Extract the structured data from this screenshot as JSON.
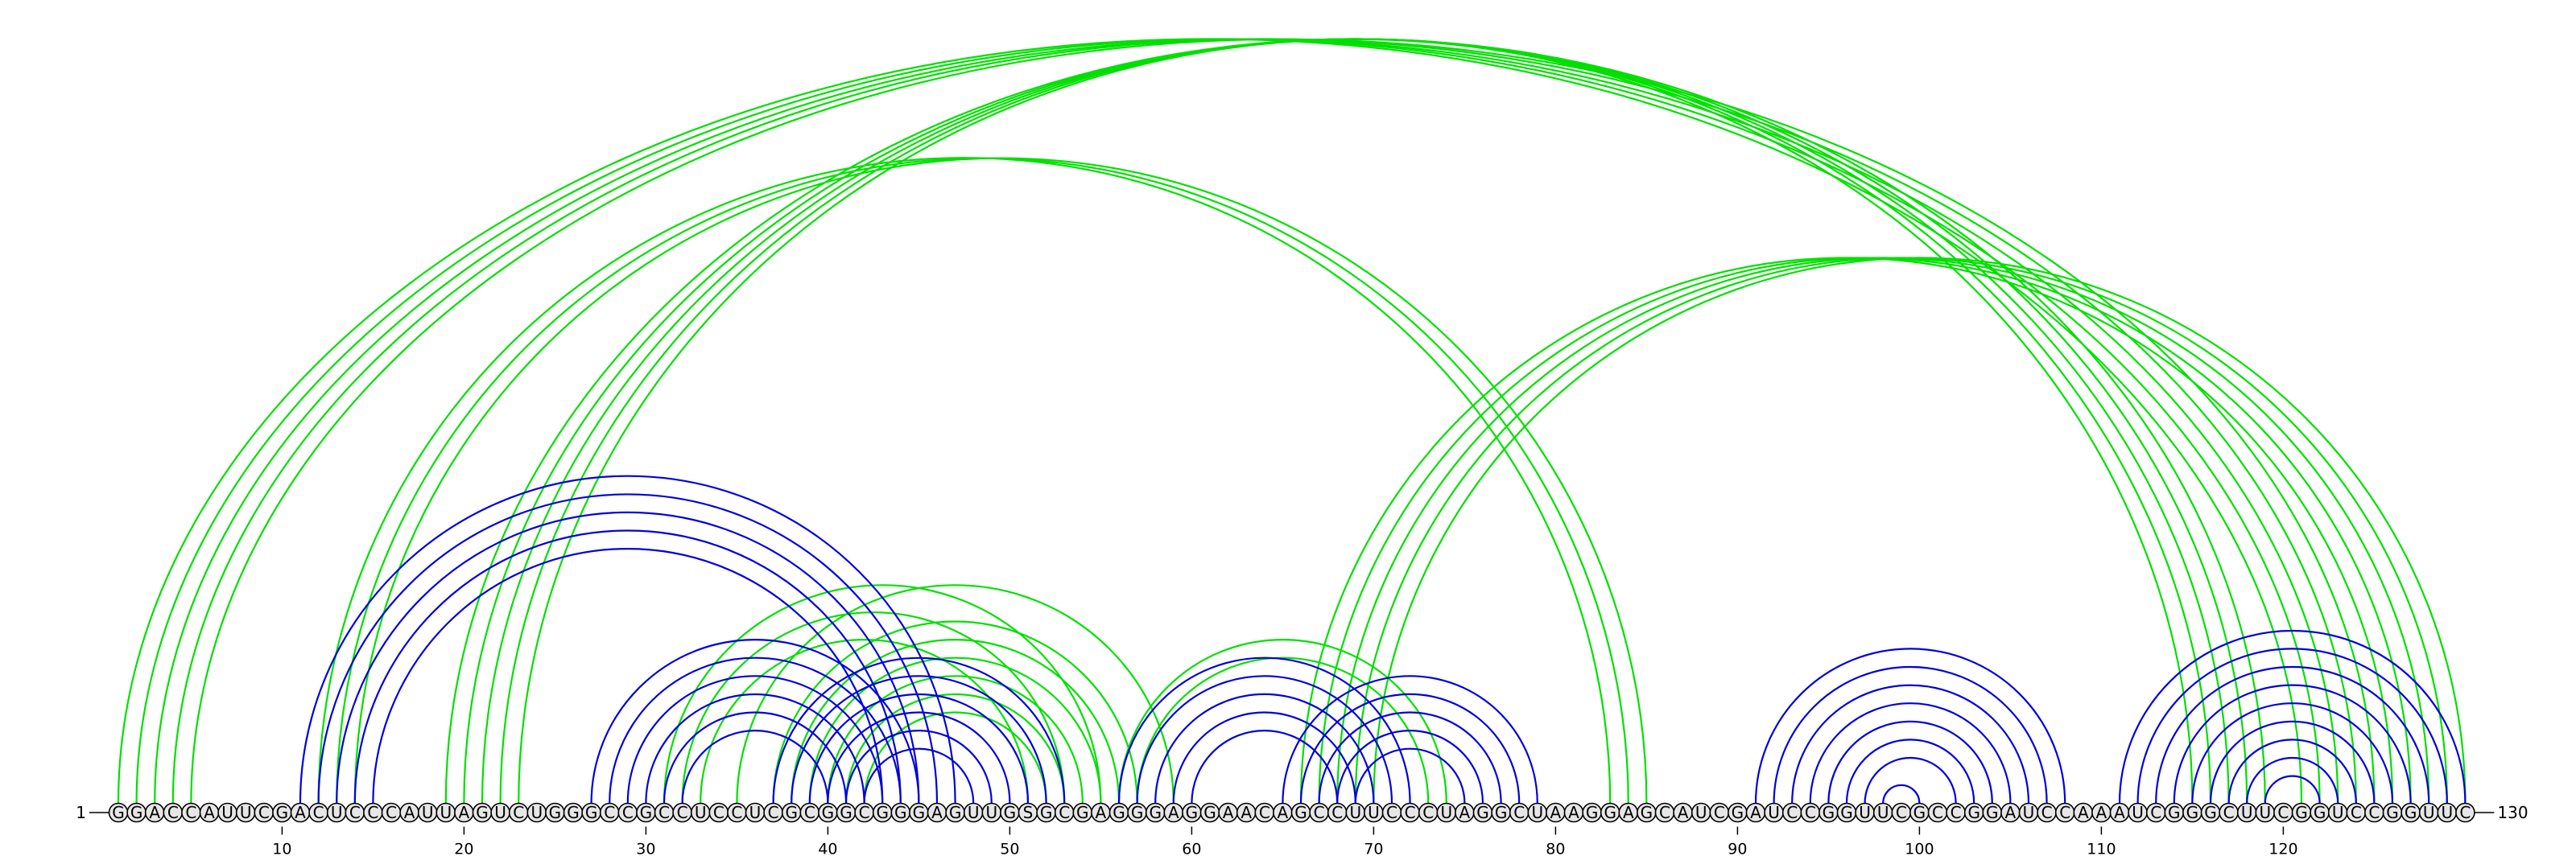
{
  "sequence": "GGACCAUUCGACUCCCAUUAGUCUGGGCCGCCUCCUCGCGGCGGGAGUUGSGCGAGGGAGGAACAGCCUUCCCUAGGCUAAGGAGCAUCGAUCCGGUUCGCCGGAUCCAAAUCGGGCUUCGGUCCGGUUC",
  "start_label": "1",
  "end_label": "130",
  "ticks": [
    10,
    20,
    30,
    40,
    50,
    60,
    70,
    80,
    90,
    100,
    110,
    120
  ],
  "colors": {
    "blue": "#0000dd",
    "green": "#00e000"
  },
  "green_pairs": [
    [
      1,
      121
    ],
    [
      2,
      122
    ],
    [
      3,
      123
    ],
    [
      4,
      124
    ],
    [
      5,
      125
    ],
    [
      12,
      83
    ],
    [
      13,
      84
    ],
    [
      14,
      85
    ],
    [
      35,
      59
    ],
    [
      37,
      57
    ],
    [
      38,
      56
    ],
    [
      39,
      55
    ],
    [
      40,
      54
    ],
    [
      41,
      53
    ],
    [
      42,
      52
    ],
    [
      31,
      55
    ],
    [
      32,
      53
    ],
    [
      33,
      51
    ],
    [
      56,
      74
    ],
    [
      57,
      73
    ],
    [
      19,
      119
    ],
    [
      20,
      118
    ],
    [
      21,
      117
    ],
    [
      22,
      116
    ],
    [
      23,
      115
    ],
    [
      66,
      126
    ],
    [
      67,
      127
    ],
    [
      68,
      128
    ],
    [
      69,
      129
    ],
    [
      70,
      130
    ]
  ],
  "blue_pairs": [
    [
      11,
      47
    ],
    [
      12,
      46
    ],
    [
      13,
      45
    ],
    [
      14,
      44
    ],
    [
      15,
      43
    ],
    [
      27,
      45
    ],
    [
      28,
      44
    ],
    [
      29,
      43
    ],
    [
      30,
      42
    ],
    [
      31,
      41
    ],
    [
      32,
      40
    ],
    [
      37,
      53
    ],
    [
      38,
      52
    ],
    [
      39,
      51
    ],
    [
      40,
      50
    ],
    [
      41,
      49
    ],
    [
      42,
      48
    ],
    [
      56,
      72
    ],
    [
      57,
      71
    ],
    [
      58,
      70
    ],
    [
      59,
      69
    ],
    [
      60,
      68
    ],
    [
      65,
      79
    ],
    [
      66,
      78
    ],
    [
      67,
      77
    ],
    [
      68,
      76
    ],
    [
      69,
      75
    ],
    [
      91,
      108
    ],
    [
      92,
      107
    ],
    [
      93,
      106
    ],
    [
      94,
      105
    ],
    [
      95,
      104
    ],
    [
      96,
      103
    ],
    [
      97,
      102
    ],
    [
      98,
      100
    ],
    [
      111,
      130
    ],
    [
      112,
      129
    ],
    [
      113,
      128
    ],
    [
      114,
      127
    ],
    [
      115,
      126
    ],
    [
      116,
      125
    ],
    [
      117,
      124
    ],
    [
      118,
      123
    ],
    [
      119,
      122
    ]
  ]
}
